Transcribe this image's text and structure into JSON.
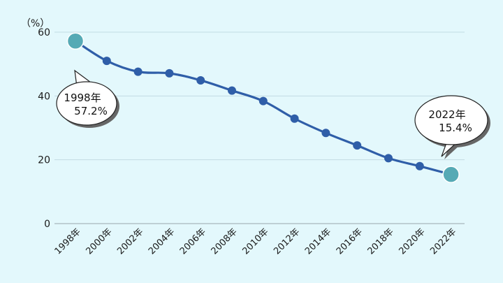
{
  "chart_data": {
    "type": "line",
    "x": [
      "1998年",
      "2000年",
      "2002年",
      "2004年",
      "2006年",
      "2008年",
      "2010年",
      "2012年",
      "2014年",
      "2016年",
      "2018年",
      "2020年",
      "2022年"
    ],
    "series": [
      {
        "values": [
          57.2,
          51.0,
          47.6,
          47.1,
          44.9,
          41.7,
          38.4,
          32.9,
          28.4,
          24.5,
          20.5,
          18.0,
          15.4
        ]
      }
    ],
    "ylabel": "（%）",
    "ylim": [
      0,
      60
    ],
    "yticks": [
      "0",
      "20",
      "40",
      "60"
    ],
    "grid": true,
    "colors": {
      "line": "#2f5ea8",
      "marker": "#2f5ea8",
      "highlight": "#56aab5",
      "grid": "#c2dbe3",
      "background": "#e3f8fc"
    },
    "annotations": [
      {
        "year_label": "1998年",
        "value_label": "57.2%"
      },
      {
        "year_label": "2022年",
        "value_label": "15.4%"
      }
    ]
  }
}
